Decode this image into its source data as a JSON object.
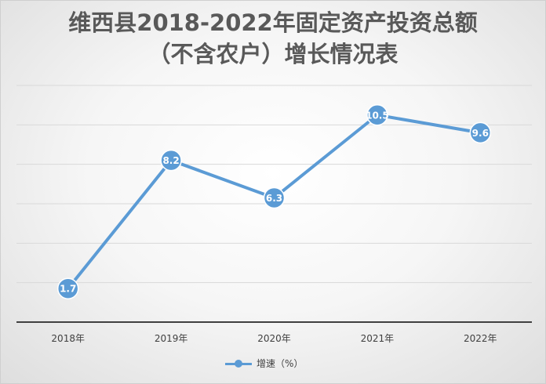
{
  "chart_data": {
    "type": "line",
    "title_line1": "维西县2018-2022年固定资产投资总额",
    "title_line2": "（不含农户）增长情况表",
    "categories": [
      "2018年",
      "2019年",
      "2020年",
      "2021年",
      "2022年"
    ],
    "series": [
      {
        "name": "增速（%）",
        "values": [
          1.7,
          8.2,
          6.3,
          10.5,
          9.6
        ],
        "color": "#5b9bd5"
      }
    ],
    "ylim": [
      0,
      12
    ],
    "y_gridlines": [
      2,
      4,
      6,
      8,
      10,
      12
    ],
    "y_tick_labels_shown": false,
    "data_labels": true,
    "grid": true,
    "legend_position": "bottom",
    "line_color": "#5b9bd5",
    "axis_color": "#404040",
    "gridline_color": "#d9d9d9"
  }
}
